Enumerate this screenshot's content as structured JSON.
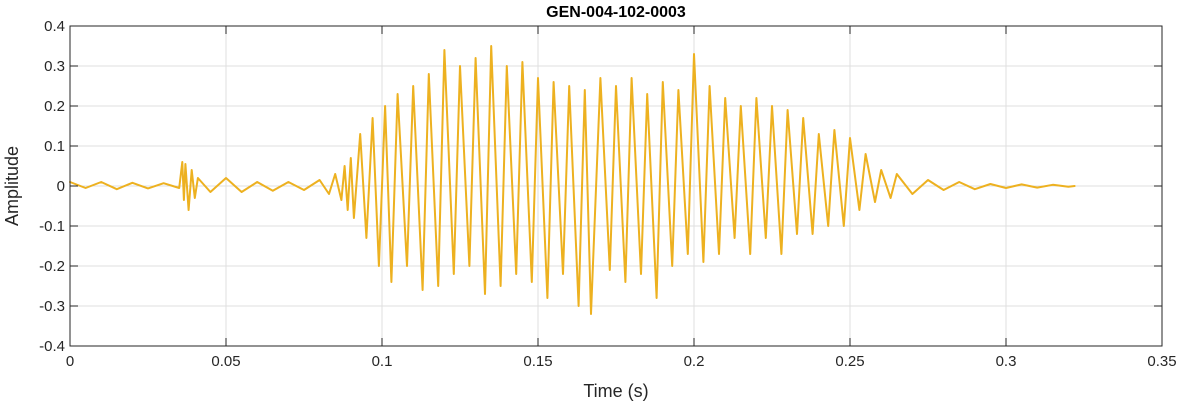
{
  "chart_data": {
    "type": "line",
    "title": "GEN-004-102-0003",
    "xlabel": "Time (s)",
    "ylabel": "Amplitude",
    "xlim": [
      0,
      0.35
    ],
    "ylim": [
      -0.4,
      0.4
    ],
    "xticks": [
      0,
      0.05,
      0.1,
      0.15,
      0.2,
      0.25,
      0.3,
      0.35
    ],
    "xtick_labels": [
      "0",
      "0.05",
      "0.1",
      "0.15",
      "0.2",
      "0.25",
      "0.3",
      "0.35"
    ],
    "yticks": [
      -0.4,
      -0.3,
      -0.2,
      -0.1,
      0,
      0.1,
      0.2,
      0.3,
      0.4
    ],
    "ytick_labels": [
      "-0.4",
      "-0.3",
      "-0.2",
      "-0.1",
      "0",
      "0.1",
      "0.2",
      "0.3",
      "0.4"
    ],
    "grid": true,
    "legend": "none",
    "series": [
      {
        "color": "#EDB120",
        "x": [
          0,
          0.005,
          0.01,
          0.015,
          0.02,
          0.025,
          0.03,
          0.035,
          0.036,
          0.0365,
          0.037,
          0.038,
          0.039,
          0.04,
          0.041,
          0.045,
          0.05,
          0.055,
          0.06,
          0.065,
          0.07,
          0.075,
          0.08,
          0.083,
          0.085,
          0.087,
          0.088,
          0.089,
          0.09,
          0.091,
          0.093,
          0.095,
          0.097,
          0.099,
          0.101,
          0.103,
          0.105,
          0.108,
          0.11,
          0.113,
          0.115,
          0.118,
          0.12,
          0.123,
          0.125,
          0.128,
          0.13,
          0.133,
          0.135,
          0.138,
          0.14,
          0.143,
          0.145,
          0.148,
          0.15,
          0.153,
          0.155,
          0.158,
          0.16,
          0.163,
          0.165,
          0.167,
          0.17,
          0.173,
          0.175,
          0.178,
          0.18,
          0.183,
          0.185,
          0.188,
          0.19,
          0.193,
          0.195,
          0.198,
          0.2,
          0.203,
          0.205,
          0.208,
          0.21,
          0.213,
          0.215,
          0.218,
          0.22,
          0.223,
          0.225,
          0.228,
          0.23,
          0.233,
          0.235,
          0.238,
          0.24,
          0.243,
          0.245,
          0.248,
          0.25,
          0.253,
          0.255,
          0.258,
          0.26,
          0.263,
          0.265,
          0.27,
          0.275,
          0.28,
          0.285,
          0.29,
          0.295,
          0.3,
          0.305,
          0.31,
          0.315,
          0.32,
          0.322
        ],
        "y": [
          0.01,
          -0.005,
          0.01,
          -0.008,
          0.008,
          -0.006,
          0.007,
          -0.005,
          0.06,
          -0.035,
          0.055,
          -0.06,
          0.04,
          -0.03,
          0.02,
          -0.015,
          0.02,
          -0.015,
          0.01,
          -0.012,
          0.01,
          -0.01,
          0.015,
          -0.02,
          0.03,
          -0.035,
          0.05,
          -0.06,
          0.07,
          -0.08,
          0.13,
          -0.13,
          0.17,
          -0.2,
          0.2,
          -0.24,
          0.23,
          -0.2,
          0.25,
          -0.26,
          0.28,
          -0.25,
          0.34,
          -0.22,
          0.3,
          -0.2,
          0.32,
          -0.27,
          0.35,
          -0.25,
          0.3,
          -0.22,
          0.31,
          -0.24,
          0.27,
          -0.28,
          0.26,
          -0.22,
          0.25,
          -0.3,
          0.24,
          -0.32,
          0.27,
          -0.21,
          0.25,
          -0.24,
          0.27,
          -0.22,
          0.23,
          -0.28,
          0.26,
          -0.2,
          0.24,
          -0.17,
          0.33,
          -0.19,
          0.25,
          -0.17,
          0.22,
          -0.13,
          0.2,
          -0.17,
          0.22,
          -0.13,
          0.2,
          -0.17,
          0.19,
          -0.12,
          0.17,
          -0.12,
          0.13,
          -0.1,
          0.14,
          -0.1,
          0.12,
          -0.06,
          0.08,
          -0.04,
          0.04,
          -0.03,
          0.03,
          -0.02,
          0.015,
          -0.01,
          0.01,
          -0.008,
          0.005,
          -0.005,
          0.004,
          -0.004,
          0.003,
          -0.002,
          0.0
        ]
      }
    ]
  }
}
